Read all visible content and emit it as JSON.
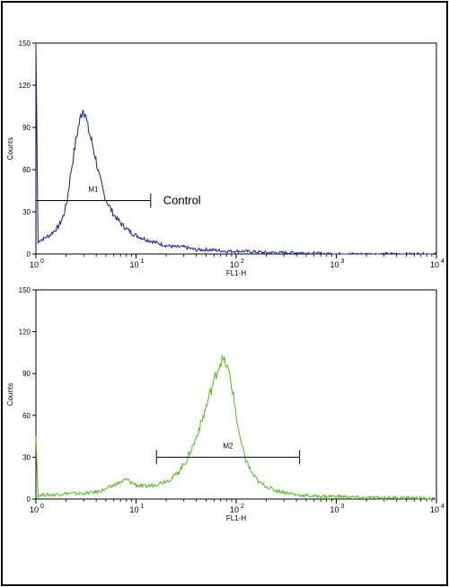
{
  "chart_data": [
    {
      "type": "line",
      "panel": "top",
      "xlabel": "FL1-H",
      "ylabel": "Counts",
      "x_scale": "log",
      "xlim": [
        1,
        10000
      ],
      "ylim": [
        0,
        150
      ],
      "x_ticks": [
        "10",
        "10",
        "10",
        "10",
        "10"
      ],
      "x_tick_exponents": [
        "0",
        "1",
        "2",
        "3",
        "4"
      ],
      "y_ticks": [
        "0",
        "30",
        "60",
        "90",
        "120",
        "150"
      ],
      "series": [
        {
          "color": "#1f2fa8",
          "x": [
            1.0,
            1.05,
            1.1,
            1.2,
            1.35,
            1.5,
            1.7,
            1.9,
            2.05,
            2.2,
            2.35,
            2.5,
            2.65,
            2.8,
            2.95,
            3.1,
            3.3,
            3.6,
            3.9,
            4.3,
            4.8,
            5.3,
            6.0,
            7.0,
            8.0,
            9.5,
            11,
            13,
            16,
            20,
            25,
            30,
            40,
            55,
            80,
            120,
            200,
            400,
            1000,
            3000,
            10000
          ],
          "y": [
            150,
            8,
            10,
            11,
            13,
            16,
            20,
            28,
            38,
            55,
            68,
            80,
            90,
            98,
            103,
            100,
            90,
            80,
            70,
            55,
            42,
            35,
            28,
            22,
            18,
            14,
            12,
            10,
            8,
            6,
            5,
            5,
            3,
            3,
            2,
            2,
            1,
            1,
            0,
            0,
            0
          ]
        }
      ],
      "marker": {
        "label": "M1",
        "x_start": 1.0,
        "x_end": 14,
        "y": 38
      },
      "annotation": "Control"
    },
    {
      "type": "line",
      "panel": "bottom",
      "xlabel": "FL1-H",
      "ylabel": "Counts",
      "x_scale": "log",
      "xlim": [
        1,
        10000
      ],
      "ylim": [
        0,
        150
      ],
      "x_ticks": [
        "10",
        "10",
        "10",
        "10",
        "10"
      ],
      "x_tick_exponents": [
        "0",
        "1",
        "2",
        "3",
        "4"
      ],
      "y_ticks": [
        "0",
        "30",
        "60",
        "90",
        "120",
        "150"
      ],
      "series": [
        {
          "color": "#5cc02a",
          "x": [
            1.0,
            1.05,
            1.1,
            1.5,
            2,
            3,
            4,
            5,
            6,
            7,
            8,
            9,
            10,
            12,
            15,
            18,
            22,
            27,
            32,
            38,
            45,
            52,
            60,
            67,
            72,
            78,
            85,
            92,
            100,
            110,
            125,
            145,
            170,
            200,
            250,
            300,
            400,
            600,
            1000,
            2000,
            5000,
            10000
          ],
          "y": [
            45,
            2,
            3,
            3,
            4,
            4,
            5,
            7,
            10,
            12,
            14,
            12,
            10,
            9,
            10,
            12,
            14,
            20,
            28,
            40,
            55,
            70,
            85,
            95,
            100,
            98,
            90,
            78,
            60,
            42,
            28,
            18,
            12,
            9,
            6,
            5,
            3,
            2,
            2,
            1,
            1,
            0
          ]
        }
      ],
      "marker": {
        "label": "M2",
        "x_start": 16,
        "x_end": 430,
        "y": 30
      }
    }
  ]
}
